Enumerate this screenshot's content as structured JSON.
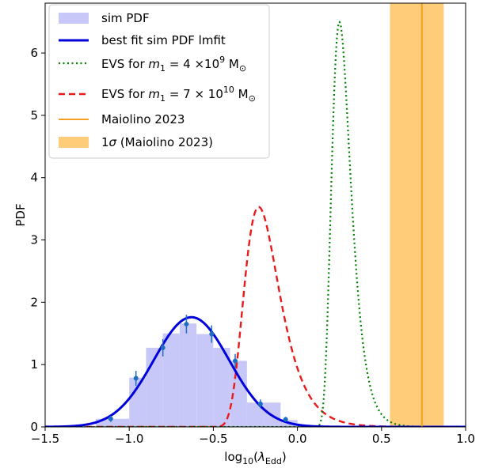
{
  "chart_data": {
    "type": "line",
    "xlabel": "log",
    "xlabel_sub1": "10",
    "xlabel_paren_open": "(",
    "xlabel_lambda": "λ",
    "xlabel_sub2": "Edd",
    "xlabel_paren_close": ")",
    "ylabel": "PDF",
    "xlim": [
      -1.5,
      1.0
    ],
    "ylim": [
      0,
      6.8
    ],
    "xticks": [
      -1.5,
      -1.0,
      -0.5,
      0.0,
      0.5,
      1.0
    ],
    "xtick_labels": [
      "−1.5",
      "−1.0",
      "−0.5",
      "0.0",
      "0.5",
      "1.0"
    ],
    "yticks": [
      0,
      1,
      2,
      3,
      4,
      5,
      6
    ],
    "ytick_labels": [
      "0",
      "1",
      "2",
      "3",
      "4",
      "5",
      "6"
    ],
    "grid": false,
    "legend_position": "top-left",
    "histogram": {
      "name": "sim PDF",
      "color": "#c8c8f8",
      "bins": [
        {
          "x0": -1.2,
          "x1": -1.1,
          "value": 0.13
        },
        {
          "x0": -1.1,
          "x1": -1.0,
          "value": 0.13
        },
        {
          "x0": -1.0,
          "x1": -0.9,
          "value": 0.79
        },
        {
          "x0": -0.9,
          "x1": -0.8,
          "value": 1.27
        },
        {
          "x0": -0.8,
          "x1": -0.7,
          "value": 1.5
        },
        {
          "x0": -0.7,
          "x1": -0.6,
          "value": 1.66
        },
        {
          "x0": -0.6,
          "x1": -0.5,
          "value": 1.49
        },
        {
          "x0": -0.5,
          "x1": -0.4,
          "value": 1.27
        },
        {
          "x0": -0.4,
          "x1": -0.3,
          "value": 1.06
        },
        {
          "x0": -0.3,
          "x1": -0.2,
          "value": 0.39
        },
        {
          "x0": -0.2,
          "x1": -0.1,
          "value": 0.39
        },
        {
          "x0": -0.1,
          "x1": 0.0,
          "value": 0.11
        }
      ]
    },
    "data_points": {
      "color": "#1f6fc0",
      "points": [
        {
          "x": -1.11,
          "y": 0.13,
          "err": 0.05
        },
        {
          "x": -0.96,
          "y": 0.78,
          "err": 0.12
        },
        {
          "x": -0.8,
          "y": 1.27,
          "err": 0.14
        },
        {
          "x": -0.66,
          "y": 1.65,
          "err": 0.15
        },
        {
          "x": -0.51,
          "y": 1.49,
          "err": 0.14
        },
        {
          "x": -0.37,
          "y": 1.06,
          "err": 0.11
        },
        {
          "x": -0.22,
          "y": 0.37,
          "err": 0.07
        },
        {
          "x": -0.07,
          "y": 0.12,
          "err": 0.04
        }
      ]
    },
    "fit_curve": {
      "name": "best fit sim PDF lmfit",
      "color": "#0000dd",
      "mu": -0.63,
      "sigma": 0.225,
      "amplitude": 1.76
    },
    "evs_curves": [
      {
        "label_prefix": "EVS for ",
        "label_var": "m",
        "label_var_sub": "1",
        "label_eq": " = 4 ×10",
        "label_exp": "9",
        "label_unit": " M",
        "label_unit_sub": "⊙",
        "color": "#008000",
        "dash": "dotted",
        "mode": 0.25,
        "scale": 0.056,
        "peak": 6.5
      },
      {
        "label_prefix": "EVS for ",
        "label_var": "m",
        "label_var_sub": "1",
        "label_eq": " = 7 × 10",
        "label_exp": "10",
        "label_unit": " M",
        "label_unit_sub": "⊙",
        "color": "#e81a1a",
        "dash": "dashed",
        "mode": -0.23,
        "scale": 0.104,
        "peak": 3.53
      }
    ],
    "reference": {
      "name": "Maiolino 2023",
      "x": 0.74,
      "color": "#f5a020"
    },
    "reference_band": {
      "name_prefix": "1",
      "name_sigma": "σ",
      "name_suffix": " (Maiolino 2023)",
      "x0": 0.55,
      "x1": 0.87,
      "color": "#ffcc7a"
    }
  }
}
